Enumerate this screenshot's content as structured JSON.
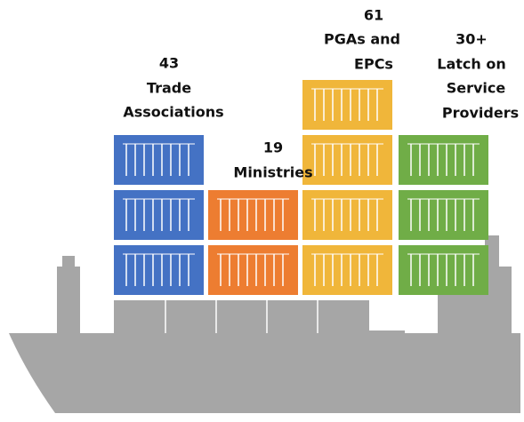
{
  "groups": [
    {
      "number": 43,
      "label": [
        "Trade",
        "Associations"
      ]
    },
    {
      "number": 19,
      "label": [
        "Ministries"
      ]
    },
    {
      "number": 61,
      "label": [
        "PGAs and",
        "EPCs"
      ]
    },
    {
      "number": "30+",
      "label": [
        "Latch on",
        "Service",
        "Providers"
      ]
    }
  ]
}
